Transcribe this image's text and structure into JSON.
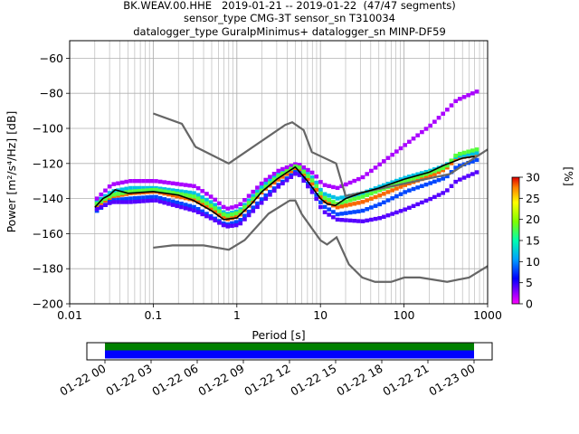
{
  "title_lines": [
    "BK.WEAV.00.HHE   2019-01-21 -- 2019-01-22  (47/47 segments)",
    "sensor_type CMG-3T sensor_sn T310034",
    "datalogger_type GuralpMinimus+ datalogger_sn MINP-DF59"
  ],
  "chart_data": {
    "type": "heatmap",
    "xlabel": "Period [s]",
    "ylabel": "Power [m²/s⁴/Hz] [dB]",
    "x_scale": "log",
    "xlim": [
      0.01,
      1000
    ],
    "ylim": [
      -200,
      -50
    ],
    "x_ticks": [
      0.01,
      0.1,
      1,
      10,
      100,
      1000
    ],
    "x_tick_labels": [
      "0.01",
      "0.1",
      "1",
      "10",
      "100",
      "1000"
    ],
    "y_ticks": [
      -200,
      -180,
      -160,
      -140,
      -120,
      -100,
      -80,
      -60
    ],
    "y_tick_labels": [
      "−200",
      "−180",
      "−160",
      "−140",
      "−120",
      "−100",
      "−80",
      "−60"
    ],
    "grid": true,
    "colorbar": {
      "label": "[%]",
      "range": [
        0,
        30
      ],
      "ticks": [
        0,
        5,
        10,
        15,
        20,
        25,
        30
      ]
    },
    "noise_models": {
      "high": {
        "x": [
          0.1,
          0.22,
          0.32,
          0.8,
          3.8,
          4.6,
          6.3,
          7.9,
          15.4,
          20,
          354,
          1000
        ],
        "y": [
          -91.5,
          -97.4,
          -110.5,
          -120,
          -98,
          -96.5,
          -101,
          -113.5,
          -120,
          -138.5,
          -126,
          -112
        ]
      },
      "low": {
        "x": [
          0.1,
          0.17,
          0.4,
          0.8,
          1.24,
          2.4,
          4.3,
          5,
          6,
          10,
          12,
          15.6,
          21.9,
          31.6,
          45,
          70,
          101,
          154,
          328,
          600,
          1000
        ],
        "y": [
          -168,
          -166.7,
          -166.7,
          -169.2,
          -163.7,
          -148.6,
          -141.1,
          -141.1,
          -149,
          -163.8,
          -166.2,
          -162.1,
          -177.5,
          -185,
          -187.5,
          -187.5,
          -185,
          -185,
          -187.5,
          -185,
          -178.5
        ]
      }
    },
    "mode": {
      "x": [
        0.02,
        0.025,
        0.03,
        0.035,
        0.05,
        0.1,
        0.2,
        0.3,
        0.5,
        0.7,
        1,
        1.5,
        2,
        3,
        4,
        5,
        7,
        10,
        12,
        15,
        20,
        30,
        50,
        100,
        200,
        300,
        500,
        700
      ],
      "y": [
        -145,
        -140,
        -138,
        -135,
        -137,
        -136,
        -138,
        -141,
        -147,
        -152,
        -151,
        -143,
        -136,
        -129,
        -125,
        -122,
        -130,
        -140,
        -143,
        -144,
        -140,
        -137,
        -134,
        -129,
        -125,
        -121,
        -117,
        -116
      ]
    },
    "psd_tracks": [
      {
        "x": [
          0.02,
          0.03,
          0.05,
          0.1,
          0.3,
          0.5,
          0.7,
          1,
          2,
          3,
          5,
          8,
          10,
          15,
          30,
          50,
          100,
          200,
          300,
          400,
          700
        ],
        "y": [
          -144,
          -139,
          -137,
          -136,
          -141,
          -147,
          -152,
          -150,
          -135,
          -129,
          -122,
          -133,
          -141,
          -145,
          -142,
          -138,
          -132,
          -127,
          -123,
          -117,
          -115
        ],
        "pct": 28
      },
      {
        "x": [
          0.02,
          0.03,
          0.05,
          0.1,
          0.3,
          0.5,
          0.7,
          1,
          2,
          3,
          5,
          8,
          10,
          15,
          30,
          50,
          100,
          200,
          300,
          400,
          700
        ],
        "y": [
          -142,
          -136,
          -134,
          -134,
          -137,
          -143,
          -149,
          -147,
          -132,
          -126,
          -121,
          -129,
          -137,
          -140,
          -137,
          -133,
          -128,
          -124,
          -121,
          -116,
          -114
        ],
        "pct": 12
      },
      {
        "x": [
          0.02,
          0.03,
          0.05,
          0.1,
          0.3,
          0.5,
          0.7,
          1,
          2,
          3,
          5,
          8,
          10,
          15,
          30,
          50,
          100,
          200,
          300,
          400,
          700
        ],
        "y": [
          -147,
          -141,
          -140,
          -139,
          -145,
          -151,
          -155,
          -153,
          -139,
          -132,
          -124,
          -136,
          -144,
          -149,
          -147,
          -143,
          -136,
          -131,
          -128,
          -122,
          -118
        ],
        "pct": 8
      },
      {
        "x": [
          0.02,
          0.03,
          0.05,
          0.1,
          0.3,
          0.5,
          0.7,
          1,
          2,
          3,
          5,
          8,
          10,
          15,
          30,
          50,
          100,
          200,
          300,
          400,
          700
        ],
        "y": [
          -140,
          -132,
          -130,
          -130,
          -133,
          -140,
          -146,
          -144,
          -130,
          -124,
          -120,
          -126,
          -132,
          -134,
          -128,
          -120,
          -109,
          -98,
          -90,
          -84,
          -79
        ],
        "pct": 2
      },
      {
        "x": [
          0.02,
          0.03,
          0.05,
          0.1,
          0.3,
          0.5,
          0.7,
          1,
          2,
          3,
          5,
          8,
          10,
          15,
          30,
          50,
          100,
          200,
          300,
          400,
          700
        ],
        "y": [
          -146,
          -142,
          -142,
          -141,
          -147,
          -152,
          -156,
          -155,
          -141,
          -133,
          -125,
          -138,
          -147,
          -152,
          -153,
          -151,
          -146,
          -140,
          -136,
          -130,
          -125
        ],
        "pct": 4
      },
      {
        "x": [
          0.02,
          0.03,
          0.05,
          0.1,
          0.3,
          0.5,
          0.7,
          1,
          2,
          3,
          5,
          8,
          10,
          15,
          30,
          50,
          100,
          200,
          300,
          400,
          700
        ],
        "y": [
          -143,
          -138,
          -136,
          -135,
          -139,
          -145,
          -150,
          -148,
          -134,
          -127,
          -121,
          -131,
          -139,
          -143,
          -139,
          -135,
          -130,
          -125,
          -122,
          -115,
          -112
        ],
        "pct": 18
      }
    ],
    "timeline": {
      "ticks": [
        "01-22 00",
        "01-22 03",
        "01-22 06",
        "01-22 09",
        "01-22 12",
        "01-22 15",
        "01-22 18",
        "01-22 21",
        "01-23 00"
      ],
      "data_start_fraction": 0,
      "data_end_fraction": 1,
      "bar_colors": [
        "#008000",
        "#0000ff"
      ]
    }
  }
}
